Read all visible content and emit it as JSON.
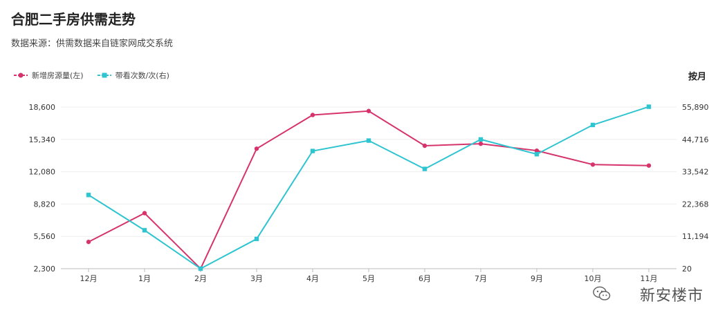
{
  "header": {
    "title": "合肥二手房供需走势",
    "subtitle": "数据来源：供需数据来自链家网成交系统"
  },
  "period_label": "按月",
  "watermark": {
    "text": "新安楼市",
    "icon": "wechat-icon"
  },
  "colors": {
    "left_series": "#d6336c",
    "right_series": "#2ec4d0",
    "grid": "#eeeeee"
  },
  "chart_data": {
    "type": "line",
    "categories": [
      "12月",
      "1月",
      "2月",
      "3月",
      "4月",
      "5月",
      "6月",
      "7月",
      "9月",
      "10月",
      "11月"
    ],
    "series": [
      {
        "name": "新增房源量(左)",
        "axis": "left",
        "values": [
          5000,
          7900,
          2300,
          14400,
          17800,
          18200,
          14700,
          14900,
          14200,
          12800,
          12700
        ]
      },
      {
        "name": "带看次数/次(右)",
        "axis": "right",
        "values": [
          25500,
          13300,
          20,
          10300,
          40700,
          44300,
          34500,
          44700,
          39600,
          49700,
          56000
        ]
      }
    ],
    "y_left": {
      "ticks": [
        "2,300",
        "5,560",
        "8,820",
        "12,080",
        "15,340",
        "18,600"
      ],
      "ylim": [
        2300,
        18600
      ]
    },
    "y_right": {
      "ticks": [
        "20",
        "11,194",
        "22,368",
        "33,542",
        "44,716",
        "55,890"
      ],
      "ylim": [
        20,
        55890
      ]
    },
    "grid": true,
    "legend_position": "top-left"
  }
}
